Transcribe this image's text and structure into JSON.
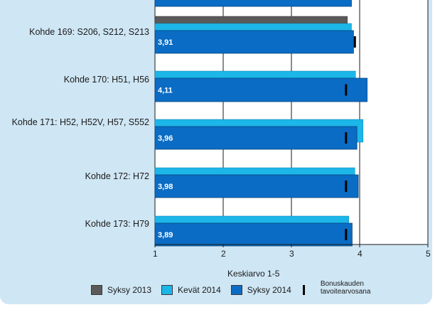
{
  "chart_data": {
    "type": "bar",
    "orientation": "horizontal",
    "xlabel": "Keskiarvo 1-5",
    "xlim": [
      1,
      5
    ],
    "x_ticks": [
      "1",
      "2",
      "3",
      "4",
      "5"
    ],
    "grid": "vertical",
    "series": [
      {
        "name": "Syksy 2013",
        "color": "#5a5a5a"
      },
      {
        "name": "Kevät 2014",
        "color": "#1cb6e8"
      },
      {
        "name": "Syksy 2014",
        "color": "#0a6cc4"
      }
    ],
    "target_label": "Bonuskauden tavoitearvosana",
    "categories": [
      {
        "label": "",
        "values": {
          "Syksy 2014": 3.88
        },
        "value_label": "",
        "target": null
      },
      {
        "label": "Kohde 169: S206, S212, S213",
        "values": {
          "Syksy 2013": 3.82,
          "Kevät 2014": 3.88,
          "Syksy 2014": 3.91
        },
        "value_label": "3,91",
        "target": 3.93
      },
      {
        "label": "Kohde 170: H51, H56",
        "values": {
          "Kevät 2014": 3.94,
          "Syksy 2014": 4.11
        },
        "value_label": "4,11",
        "target": 3.8
      },
      {
        "label": "Kohde 171: H52, H52V, H57, S552",
        "values": {
          "Kevät 2014": 4.05,
          "Syksy 2014": 3.96
        },
        "value_label": "3,96",
        "target": 3.8
      },
      {
        "label": "Kohde 172: H72",
        "values": {
          "Kevät 2014": 3.93,
          "Syksy 2014": 3.98
        },
        "value_label": "3,98",
        "target": 3.8
      },
      {
        "label": "Kohde 173: H79",
        "values": {
          "Kevät 2014": 3.84,
          "Syksy 2014": 3.89
        },
        "value_label": "3,89",
        "target": 3.8
      }
    ]
  }
}
